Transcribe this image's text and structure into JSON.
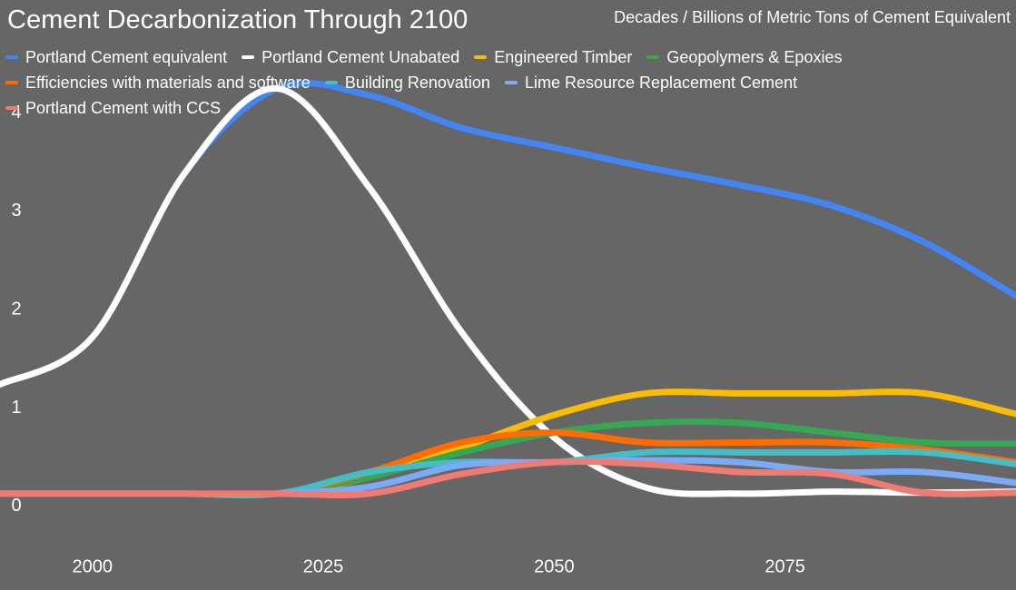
{
  "chart_data": {
    "type": "line",
    "title": "Cement Decarbonization Through 2100",
    "subtitle": "Decades / Billions of Metric Tons of Cement Equivalent",
    "x": [
      1990,
      2000,
      2010,
      2020,
      2030,
      2040,
      2050,
      2060,
      2070,
      2080,
      2090,
      2100
    ],
    "xlim": [
      1990,
      2100
    ],
    "xticks": [
      2000,
      2025,
      2050,
      2075
    ],
    "ylim": [
      -0.85,
      5.15
    ],
    "yticks": [
      0,
      1,
      2,
      3,
      4
    ],
    "grid": false,
    "legend": "top",
    "series": [
      {
        "name": "Portland Cement equivalent",
        "color": "#4285f4",
        "values": [
          1.24,
          1.72,
          3.39,
          4.25,
          4.18,
          3.85,
          3.65,
          3.45,
          3.27,
          3.06,
          2.69,
          2.14
        ]
      },
      {
        "name": "Portland Cement Unabated",
        "color": "#ffffff",
        "values": [
          1.24,
          1.72,
          3.39,
          4.25,
          3.24,
          1.77,
          0.7,
          0.19,
          0.13,
          0.15,
          0.14,
          0.15
        ]
      },
      {
        "name": "Engineered Timber",
        "color": "#fbbc04",
        "values": [
          0.13,
          0.13,
          0.13,
          0.13,
          0.3,
          0.6,
          0.93,
          1.15,
          1.15,
          1.15,
          1.15,
          0.94
        ]
      },
      {
        "name": "Geopolymers & Epoxies",
        "color": "#34a853",
        "values": [
          0.13,
          0.13,
          0.13,
          0.13,
          0.3,
          0.55,
          0.75,
          0.85,
          0.85,
          0.75,
          0.65,
          0.64
        ]
      },
      {
        "name": "Efficiencies with materials and software",
        "color": "#ff6d01",
        "values": [
          0.13,
          0.13,
          0.13,
          0.13,
          0.35,
          0.65,
          0.75,
          0.65,
          0.65,
          0.65,
          0.58,
          0.45
        ]
      },
      {
        "name": "Building Renovation",
        "color": "#46bdc6",
        "values": [
          0.13,
          0.13,
          0.13,
          0.13,
          0.35,
          0.45,
          0.45,
          0.55,
          0.55,
          0.55,
          0.55,
          0.43
        ]
      },
      {
        "name": "Lime Resource Replacement Cement",
        "color": "#7baaf7",
        "values": [
          0.13,
          0.13,
          0.13,
          0.13,
          0.2,
          0.42,
          0.45,
          0.47,
          0.45,
          0.35,
          0.35,
          0.24
        ]
      },
      {
        "name": "Portland Cement with CCS",
        "color": "#f07b72",
        "values": [
          0.13,
          0.13,
          0.13,
          0.13,
          0.13,
          0.33,
          0.45,
          0.43,
          0.35,
          0.33,
          0.14,
          0.14
        ]
      }
    ]
  }
}
